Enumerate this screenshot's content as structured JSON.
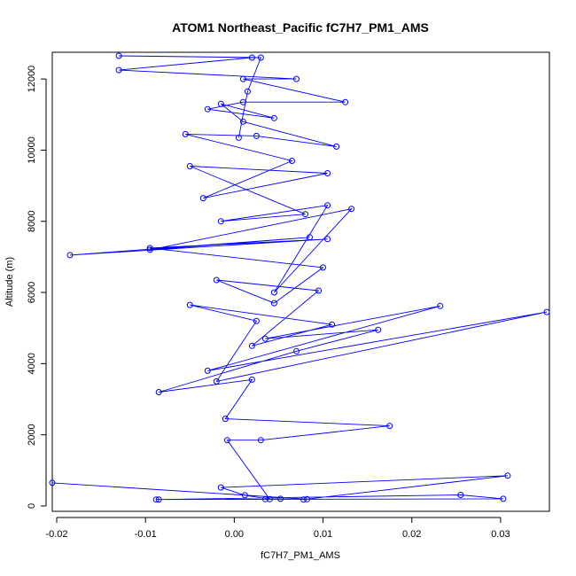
{
  "chart_data": {
    "type": "line",
    "title": "ATOM1 Northeast_Pacific fC7H7_PM1_AMS",
    "xlabel": "fC7H7_PM1_AMS",
    "ylabel": "Altitude (m)",
    "xlim": [
      -0.0205,
      0.0355
    ],
    "ylim": [
      -150,
      12750
    ],
    "xticks": [
      -0.02,
      -0.01,
      0.0,
      0.01,
      0.02,
      0.03
    ],
    "xtick_labels": [
      "-0.02",
      "-0.01",
      "0.00",
      "0.01",
      "0.02",
      "0.03"
    ],
    "yticks": [
      0,
      2000,
      4000,
      6000,
      8000,
      10000,
      12000
    ],
    "ytick_labels": [
      "0",
      "2000",
      "4000",
      "6000",
      "8000",
      "10000",
      "12000"
    ],
    "grid": false,
    "legend": "none",
    "line_color": "#0000ff",
    "marker": "open-circle",
    "series": [
      {
        "points": [
          [
            -0.0205,
            650
          ],
          [
            0.0082,
            190
          ],
          [
            -0.0088,
            180
          ],
          [
            0.0303,
            200
          ],
          [
            0.0255,
            310
          ],
          [
            -0.0085,
            180
          ],
          [
            0.0035,
            190
          ],
          [
            0.0052,
            200
          ],
          [
            0.0078,
            180
          ],
          [
            0.0308,
            850
          ],
          [
            -0.0015,
            520
          ],
          [
            0.0012,
            300
          ],
          [
            0.004,
            190
          ],
          [
            -0.0008,
            1850
          ],
          [
            0.003,
            1850
          ],
          [
            0.0175,
            2250
          ],
          [
            -0.001,
            2450
          ],
          [
            0.002,
            3550
          ],
          [
            -0.0085,
            3200
          ],
          [
            0.007,
            4350
          ],
          [
            0.0162,
            4950
          ],
          [
            0.0035,
            4700
          ],
          [
            0.0232,
            5620
          ],
          [
            -0.003,
            3800
          ],
          [
            0.0352,
            5450
          ],
          [
            -0.002,
            3500
          ],
          [
            0.0025,
            5200
          ],
          [
            -0.005,
            5650
          ],
          [
            0.011,
            5100
          ],
          [
            0.002,
            4500
          ],
          [
            0.0095,
            6050
          ],
          [
            -0.002,
            6350
          ],
          [
            0.0045,
            5700
          ],
          [
            0.01,
            6700
          ],
          [
            -0.0095,
            7250
          ],
          [
            0.0105,
            7500
          ],
          [
            -0.0185,
            7050
          ],
          [
            0.0085,
            7550
          ],
          [
            -0.0095,
            7200
          ],
          [
            0.0132,
            8350
          ],
          [
            0.0045,
            6000
          ],
          [
            0.0105,
            8450
          ],
          [
            -0.0015,
            8000
          ],
          [
            0.008,
            8200
          ],
          [
            -0.005,
            9550
          ],
          [
            0.0105,
            9350
          ],
          [
            -0.0035,
            8650
          ],
          [
            0.0065,
            9700
          ],
          [
            -0.0055,
            10450
          ],
          [
            0.0025,
            10400
          ],
          [
            0.0115,
            10100
          ],
          [
            0.001,
            10800
          ],
          [
            -0.0015,
            11300
          ],
          [
            0.0045,
            10900
          ],
          [
            -0.003,
            11150
          ],
          [
            0.001,
            11350
          ],
          [
            0.0125,
            11350
          ],
          [
            0.001,
            12000
          ],
          [
            0.007,
            12000
          ],
          [
            -0.013,
            12250
          ],
          [
            0.002,
            12600
          ],
          [
            -0.013,
            12650
          ],
          [
            0.003,
            12600
          ],
          [
            0.0015,
            11650
          ],
          [
            0.0005,
            10350
          ]
        ]
      }
    ]
  }
}
